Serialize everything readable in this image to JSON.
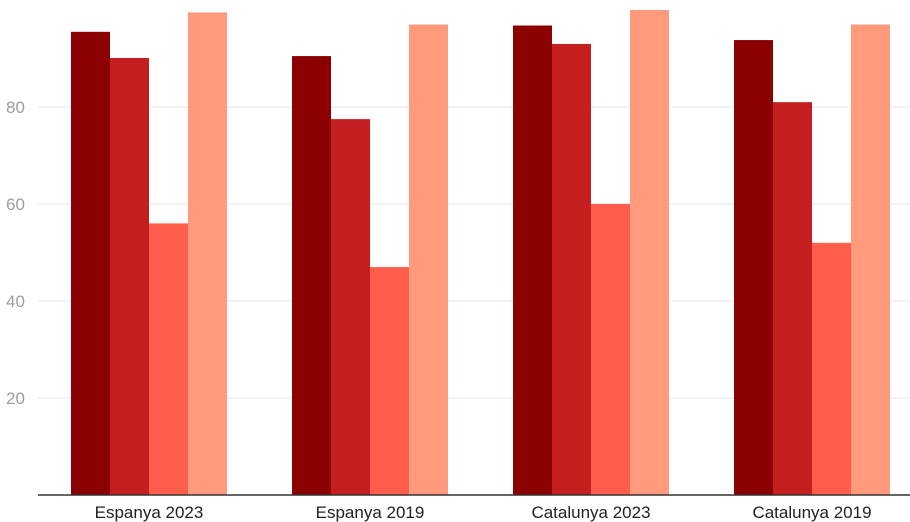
{
  "chart_data": {
    "type": "bar",
    "title": "",
    "xlabel": "",
    "ylabel": "",
    "categories": [
      "Espanya 2023",
      "Espanya 2019",
      "Catalunya 2023",
      "Catalunya 2019"
    ],
    "series": [
      {
        "values": [
          95.5,
          90.5,
          96.8,
          93.8
        ],
        "color": "#8b0000"
      },
      {
        "values": [
          90.1,
          77.5,
          93.0,
          81.0
        ],
        "color": "#c41e1e"
      },
      {
        "values": [
          56.0,
          47.0,
          60.0,
          52.0
        ],
        "color": "#ff5e4d"
      },
      {
        "values": [
          99.5,
          97.0,
          100.0,
          97.0
        ],
        "color": "#ff9a7c"
      }
    ],
    "yticks": [
      20,
      40,
      60,
      80
    ],
    "ylim": [
      0,
      100
    ],
    "grid": true,
    "legend": "none"
  }
}
